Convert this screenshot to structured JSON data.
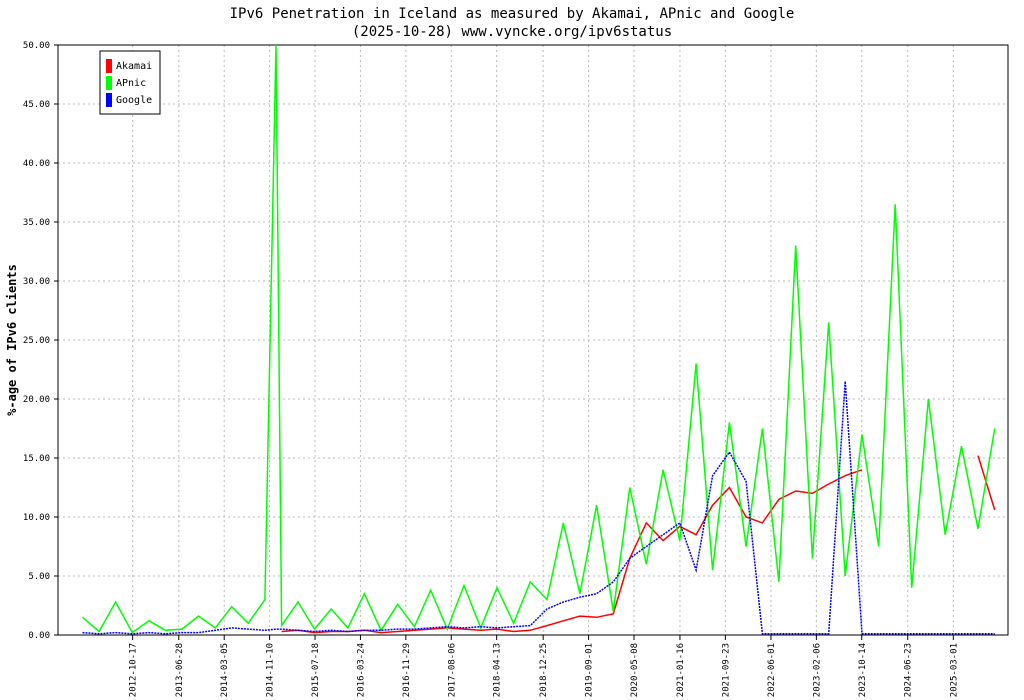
{
  "chart_data": {
    "type": "line",
    "title": "IPv6 Penetration in Iceland as measured by Akamai, APnic and Google",
    "subtitle": "(2025-10-28) www.vyncke.org/ipv6status",
    "y_label": "%-age of IPv6 clients",
    "x": [
      "2012-01-15",
      "2012-04-15",
      "2012-07-15",
      "2012-10-15",
      "2013-01-15",
      "2013-04-15",
      "2013-07-15",
      "2013-10-15",
      "2014-01-15",
      "2014-04-15",
      "2014-07-15",
      "2014-10-15",
      "2014-12-15",
      "2015-01-15",
      "2015-04-15",
      "2015-07-15",
      "2015-10-15",
      "2016-01-15",
      "2016-04-15",
      "2016-07-15",
      "2016-10-15",
      "2017-01-15",
      "2017-04-15",
      "2017-07-15",
      "2017-10-15",
      "2018-01-15",
      "2018-04-15",
      "2018-07-15",
      "2018-10-15",
      "2019-01-15",
      "2019-04-15",
      "2019-07-15",
      "2019-10-15",
      "2020-01-15",
      "2020-04-15",
      "2020-07-15",
      "2020-10-15",
      "2021-01-15",
      "2021-04-15",
      "2021-07-15",
      "2021-10-15",
      "2022-01-15",
      "2022-04-15",
      "2022-07-15",
      "2022-10-15",
      "2023-01-15",
      "2023-04-15",
      "2023-07-15",
      "2023-10-15",
      "2024-01-15",
      "2024-04-15",
      "2024-07-15",
      "2024-10-15",
      "2025-01-15",
      "2025-04-15",
      "2025-07-15",
      "2025-10-15"
    ],
    "series": [
      {
        "name": "Akamai",
        "color": "#ff0000",
        "values": [
          null,
          null,
          null,
          null,
          null,
          null,
          null,
          null,
          null,
          null,
          null,
          null,
          null,
          0.3,
          0.4,
          0.2,
          0.3,
          0.3,
          0.4,
          0.2,
          0.3,
          0.4,
          0.5,
          0.6,
          0.5,
          0.4,
          0.5,
          0.3,
          0.4,
          0.8,
          1.2,
          1.6,
          1.5,
          1.8,
          6.5,
          9.5,
          8.0,
          9.2,
          8.5,
          11.0,
          12.5,
          10.0,
          9.5,
          11.5,
          12.2,
          12.0,
          12.8,
          13.5,
          14.0,
          null,
          null,
          null,
          null,
          null,
          null,
          15.2,
          10.6
        ]
      },
      {
        "name": "APnic",
        "color": "#00ff00",
        "values": [
          1.5,
          0.3,
          2.8,
          0.2,
          1.2,
          0.4,
          0.5,
          1.6,
          0.6,
          2.4,
          1.0,
          3.0,
          50.0,
          0.8,
          2.8,
          0.5,
          2.2,
          0.6,
          3.5,
          0.4,
          2.6,
          0.7,
          3.8,
          0.5,
          4.2,
          0.6,
          4.0,
          1.0,
          4.5,
          3.0,
          9.5,
          3.5,
          11.0,
          2.0,
          12.5,
          6.0,
          14.0,
          8.0,
          23.0,
          5.5,
          18.0,
          7.5,
          17.5,
          4.5,
          33.0,
          6.5,
          26.5,
          5.0,
          17.0,
          7.5,
          36.5,
          4.0,
          20.0,
          8.5,
          16.0,
          9.0,
          17.5
        ]
      },
      {
        "name": "Google",
        "color": "#0000ff",
        "dashed": true,
        "values": [
          0.2,
          0.1,
          0.2,
          0.1,
          0.2,
          0.1,
          0.2,
          0.2,
          0.4,
          0.6,
          0.5,
          0.4,
          0.5,
          0.5,
          0.4,
          0.3,
          0.4,
          0.3,
          0.4,
          0.4,
          0.5,
          0.5,
          0.6,
          0.7,
          0.6,
          0.7,
          0.6,
          0.7,
          0.8,
          2.2,
          2.8,
          3.2,
          3.5,
          4.5,
          6.5,
          7.5,
          8.5,
          9.5,
          5.5,
          13.5,
          15.5,
          13.0,
          0.1,
          0.1,
          0.1,
          0.1,
          0.1,
          21.5,
          0.1,
          0.1,
          0.1,
          0.1,
          0.1,
          0.1,
          0.1,
          0.1,
          0.1
        ]
      }
    ],
    "xlim": [
      "2011-09-02",
      "2025-12-27"
    ],
    "xticks": [
      "2012-10-17",
      "2013-06-28",
      "2014-03-05",
      "2014-11-10",
      "2015-07-18",
      "2016-03-24",
      "2016-11-29",
      "2017-08-06",
      "2018-04-13",
      "2018-12-25",
      "2019-09-01",
      "2020-05-08",
      "2021-01-16",
      "2021-09-23",
      "2022-06-01",
      "2023-02-06",
      "2023-10-14",
      "2024-06-23",
      "2025-03-01"
    ],
    "ylim": [
      0,
      50
    ],
    "yticks": [
      {
        "value": 0,
        "label": "0.00"
      },
      {
        "value": 5,
        "label": "5.00"
      },
      {
        "value": 10,
        "label": "10.00"
      },
      {
        "value": 15,
        "label": "15.00"
      },
      {
        "value": 20,
        "label": "20.00"
      },
      {
        "value": 25,
        "label": "25.00"
      },
      {
        "value": 30,
        "label": "30.00"
      },
      {
        "value": 35,
        "label": "35.00"
      },
      {
        "value": 40,
        "label": "40.00"
      },
      {
        "value": 45,
        "label": "45.00"
      },
      {
        "value": 50,
        "label": "50.00"
      }
    ],
    "grid": true,
    "legend": "upper left"
  }
}
